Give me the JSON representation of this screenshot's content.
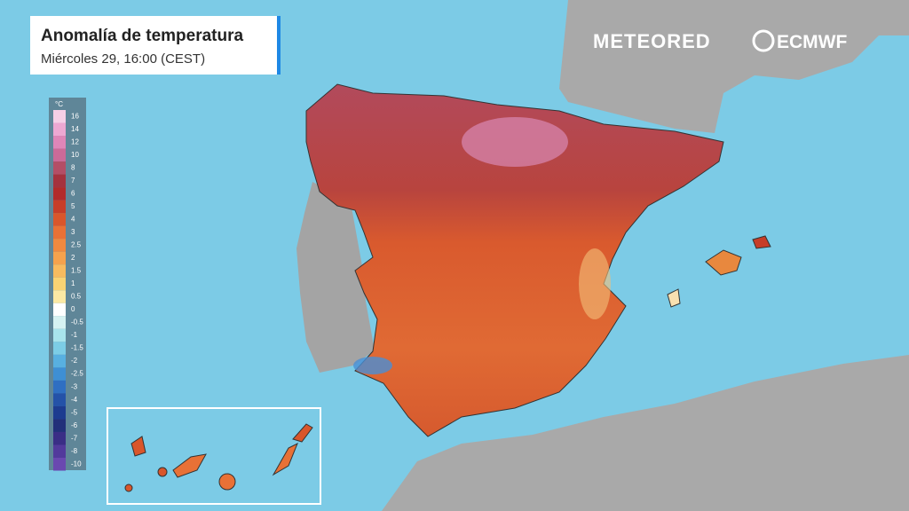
{
  "header": {
    "title": "Anomalía de temperatura",
    "subtitle": "Miércoles 29, 16:00 (CEST)"
  },
  "logos": {
    "brand": "METEORED",
    "partner": "ECMWF"
  },
  "legend": {
    "unit": "°C",
    "ticks": [
      16,
      14,
      12,
      10,
      8,
      7,
      6,
      5,
      4,
      3,
      2.5,
      2,
      1.5,
      1,
      0.5,
      0,
      -0.5,
      -1,
      -1.5,
      -2,
      -2.5,
      -3,
      -4,
      -5,
      -6,
      -7,
      -8,
      -10
    ],
    "colors": [
      "#f6cfe6",
      "#eda8d2",
      "#df86b8",
      "#cc6a98",
      "#b44e66",
      "#a5323e",
      "#b22b2b",
      "#c73d28",
      "#d9562b",
      "#e87136",
      "#f0893f",
      "#f5a24d",
      "#f8bb5f",
      "#fad373",
      "#fbe9a4",
      "#ffffff",
      "#d6f2f2",
      "#a8e4ec",
      "#7ccde6",
      "#58b0e0",
      "#3e8fd4",
      "#2f6fc2",
      "#2452a8",
      "#1d3c90",
      "#22307a",
      "#3a2e86",
      "#523a9c",
      "#6a48b0"
    ]
  }
}
